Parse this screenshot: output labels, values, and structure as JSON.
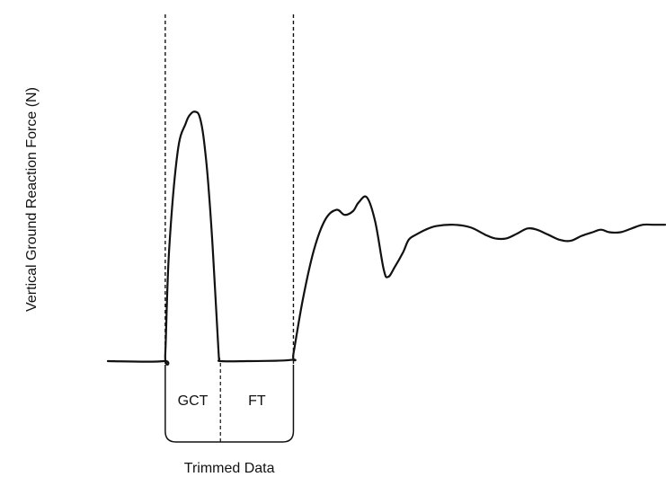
{
  "chart_data": {
    "type": "line",
    "title": "",
    "ylabel": "Vertical Ground Reaction Force (N)",
    "xlabel": "",
    "x_ticks_shown": false,
    "y_ticks_shown": false,
    "grid": false,
    "legend": "none",
    "series": [
      {
        "style": "solid",
        "color": "#111111",
        "x": [
          0,
          10,
          10.3,
          11,
          12.5,
          14,
          15,
          15.8,
          16.4,
          17,
          17.5,
          18,
          18.8,
          19.8,
          20,
          20.3,
          25,
          33,
          33.3,
          35,
          37,
          39,
          41,
          42.5,
          44,
          45,
          46.5,
          48,
          49.5,
          50.3,
          51.5,
          53,
          54,
          55.3,
          57,
          59,
          62,
          65,
          67.7,
          69.5,
          71.5,
          73.5,
          75.3,
          77,
          79,
          81,
          83,
          85,
          87,
          88.5,
          90,
          92,
          94,
          96,
          98,
          100
        ],
        "y": [
          0,
          0,
          3,
          45,
          84,
          96,
          100,
          100.5,
          99,
          93,
          84,
          72,
          46,
          6,
          1,
          0,
          0,
          0.5,
          3,
          25,
          45,
          57,
          61,
          59,
          60.5,
          64,
          66,
          56,
          37,
          34,
          38,
          44,
          49,
          51,
          53,
          54.5,
          55,
          54,
          51,
          49.5,
          49.5,
          51.5,
          53.5,
          53,
          51,
          49,
          48.5,
          50.5,
          52,
          53,
          52,
          52,
          53.5,
          55,
          55,
          55
        ]
      }
    ],
    "ylim": [
      0,
      100
    ],
    "xlim": [
      0,
      100
    ],
    "vertical_markers": [
      {
        "x": 10.3,
        "style": "dashed"
      },
      {
        "x": 33.3,
        "style": "dashed"
      }
    ],
    "annotations": {
      "phase_labels": [
        "GCT",
        "FT"
      ],
      "bracket_label": "Trimmed Data"
    }
  }
}
